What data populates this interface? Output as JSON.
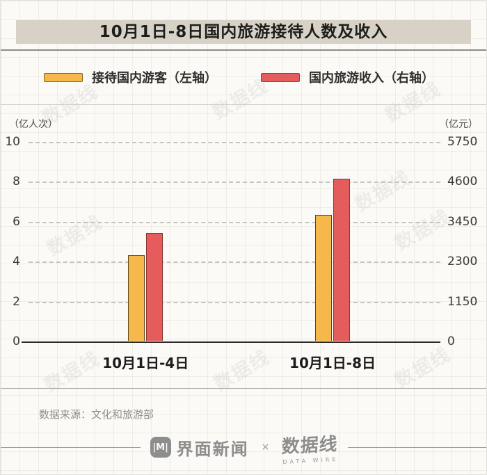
{
  "title": "10月1日-8日国内旅游接待人数及收入",
  "legend": [
    {
      "label": "接待国内游客（左轴）",
      "color": "#F7B84B"
    },
    {
      "label": "国内旅游收入（右轴）",
      "color": "#E45C5C"
    }
  ],
  "chart_data": {
    "type": "bar",
    "title": "10月1日-8日国内旅游接待人数及收入",
    "categories": [
      "10月1日-4日",
      "10月1日-8日"
    ],
    "series": [
      {
        "name": "接待国内游客（左轴）",
        "axis": "left",
        "unit": "亿人次",
        "values": [
          4.3,
          6.3
        ],
        "color": "#F7B84B",
        "border": "#5d4618"
      },
      {
        "name": "国内旅游收入（右轴）",
        "axis": "right",
        "unit": "亿元",
        "values": [
          3105,
          4670
        ],
        "color": "#E45C5C",
        "border": "#8c3432"
      }
    ],
    "left_axis": {
      "label": "（亿人次）",
      "ticks": [
        0,
        2,
        4,
        6,
        8,
        10
      ],
      "max": 10
    },
    "right_axis": {
      "label": "（亿元）",
      "ticks": [
        0,
        1150,
        2300,
        3450,
        4600,
        5750
      ],
      "max": 5750
    },
    "grid": "horizontal-dashed",
    "legend_position": "top"
  },
  "source": "数据来源：文化和旅游部",
  "footer": {
    "jiemian_icon": "|M|",
    "jiemian": "界面新闻",
    "separator": "×",
    "datawire": "数据线",
    "datawire_sub": "DATA WIRE"
  },
  "watermark": "数据线"
}
